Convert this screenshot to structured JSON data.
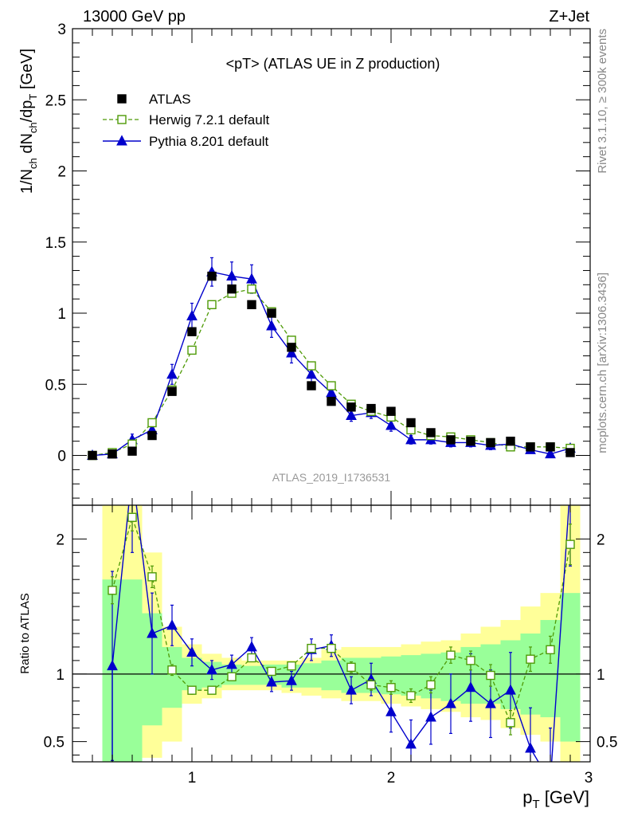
{
  "header": {
    "left": "13000 GeV pp",
    "right": "Z+Jet"
  },
  "side_labels": {
    "rivet": "Rivet 3.1.10, ≥ 300k events",
    "mcplots": "mcplots.cern.ch [arXiv:1306.3436]"
  },
  "colors": {
    "atlas": "#000000",
    "herwig": "#4e9a06",
    "pythia": "#0000cc",
    "band_inner": "#99ff99",
    "band_outer": "#ffff99"
  },
  "chart_data": [
    {
      "type": "line",
      "title": "<pT> (ATLAS UE in Z production)",
      "watermark": "ATLAS_2019_I1736531",
      "ylabel_parts": [
        "1/N",
        "ch",
        " dN",
        "ch",
        "/dp",
        "T",
        " [GeV]"
      ],
      "ylim": [
        -0.35,
        3.0
      ],
      "yticks": [
        0,
        0.5,
        1,
        1.5,
        2,
        2.5,
        3
      ],
      "ytick_labels": [
        "0",
        "0.5",
        "1",
        "1.5",
        "2",
        "2.5",
        "3"
      ],
      "xlim": [
        0.4,
        3.0
      ],
      "x": [
        0.5,
        0.6,
        0.7,
        0.8,
        0.9,
        1.0,
        1.1,
        1.2,
        1.3,
        1.4,
        1.5,
        1.6,
        1.7,
        1.8,
        1.9,
        2.0,
        2.1,
        2.2,
        2.3,
        2.4,
        2.5,
        2.6,
        2.7,
        2.8,
        2.9
      ],
      "legend": {
        "position": "top-left",
        "entries": [
          "ATLAS",
          "Herwig 7.2.1 default",
          "Pythia 8.201 default"
        ]
      },
      "series": [
        {
          "name": "ATLAS",
          "style": "markers-square-filled",
          "values": [
            0.0,
            0.01,
            0.03,
            0.14,
            0.45,
            0.87,
            1.26,
            1.17,
            1.06,
            1.0,
            0.76,
            0.49,
            0.38,
            0.34,
            0.33,
            0.31,
            0.23,
            0.16,
            0.11,
            0.1,
            0.09,
            0.1,
            0.06,
            0.06,
            0.02
          ]
        },
        {
          "name": "Herwig 7.2.1 default",
          "style": "dashed-open-square",
          "values": [
            0.0,
            0.02,
            0.08,
            0.23,
            0.46,
            0.74,
            1.06,
            1.14,
            1.17,
            1.01,
            0.81,
            0.63,
            0.49,
            0.36,
            0.31,
            0.27,
            0.18,
            0.14,
            0.13,
            0.11,
            0.09,
            0.06,
            0.06,
            0.06,
            0.05
          ],
          "errors": [
            0.0,
            0.0,
            0.01,
            0.01,
            0.02,
            0.02,
            0.02,
            0.02,
            0.02,
            0.02,
            0.02,
            0.02,
            0.02,
            0.02,
            0.02,
            0.02,
            0.02,
            0.02,
            0.02,
            0.02,
            0.02,
            0.02,
            0.02,
            0.02,
            0.02
          ]
        },
        {
          "name": "Pythia 8.201 default",
          "style": "solid-filled-triangle",
          "values": [
            0.0,
            0.01,
            0.11,
            0.18,
            0.57,
            0.98,
            1.29,
            1.26,
            1.24,
            0.91,
            0.72,
            0.57,
            0.44,
            0.28,
            0.3,
            0.21,
            0.11,
            0.11,
            0.09,
            0.09,
            0.07,
            0.08,
            0.04,
            0.01,
            0.05
          ],
          "errors": [
            0.0,
            0.01,
            0.04,
            0.05,
            0.07,
            0.09,
            0.1,
            0.1,
            0.1,
            0.08,
            0.07,
            0.06,
            0.05,
            0.04,
            0.04,
            0.04,
            0.03,
            0.03,
            0.03,
            0.03,
            0.03,
            0.03,
            0.02,
            0.02,
            0.02
          ]
        }
      ]
    },
    {
      "type": "line",
      "ylabel": "Ratio to ATLAS",
      "xlabel_parts": [
        "p",
        "T",
        " [GeV]"
      ],
      "xlim": [
        0.4,
        3.0
      ],
      "ylim": [
        0.35,
        2.25
      ],
      "xticks": [
        1,
        2,
        3
      ],
      "xtick_labels": [
        "1",
        "2",
        "3"
      ],
      "yticks": [
        0.5,
        1,
        2
      ],
      "ytick_labels": [
        "0.5",
        "1",
        "2"
      ],
      "reference_line": 1.0,
      "x": [
        0.5,
        0.6,
        0.7,
        0.8,
        0.9,
        1.0,
        1.1,
        1.2,
        1.3,
        1.4,
        1.5,
        1.6,
        1.7,
        1.8,
        1.9,
        2.0,
        2.1,
        2.2,
        2.3,
        2.4,
        2.5,
        2.6,
        2.7,
        2.8,
        2.9
      ],
      "bands": {
        "edges": [
          0.55,
          0.65,
          0.75,
          0.85,
          0.95,
          1.05,
          1.15,
          1.25,
          1.35,
          1.45,
          1.55,
          1.65,
          1.75,
          1.85,
          1.95,
          2.05,
          2.15,
          2.25,
          2.35,
          2.45,
          2.55,
          2.65,
          2.75,
          2.85,
          2.95
        ],
        "outer_low": [
          0.0,
          0.0,
          0.38,
          0.5,
          0.78,
          0.82,
          0.88,
          0.88,
          0.88,
          0.86,
          0.84,
          0.82,
          0.8,
          0.8,
          0.78,
          0.76,
          0.74,
          0.72,
          0.68,
          0.66,
          0.6,
          0.55,
          0.5,
          0.3
        ],
        "outer_high": [
          2.3,
          2.3,
          1.9,
          1.35,
          1.22,
          1.15,
          1.12,
          1.1,
          1.1,
          1.1,
          1.12,
          1.18,
          1.2,
          1.2,
          1.2,
          1.22,
          1.24,
          1.25,
          1.3,
          1.35,
          1.4,
          1.5,
          1.6,
          2.3
        ],
        "inner_low": [
          0.35,
          0.35,
          0.62,
          0.75,
          0.88,
          0.9,
          0.92,
          0.92,
          0.92,
          0.9,
          0.9,
          0.88,
          0.86,
          0.86,
          0.85,
          0.84,
          0.82,
          0.8,
          0.78,
          0.78,
          0.74,
          0.7,
          0.68,
          0.5
        ],
        "inner_high": [
          1.7,
          1.7,
          1.45,
          1.2,
          1.12,
          1.09,
          1.07,
          1.06,
          1.07,
          1.07,
          1.08,
          1.1,
          1.12,
          1.12,
          1.13,
          1.14,
          1.15,
          1.16,
          1.2,
          1.22,
          1.25,
          1.3,
          1.4,
          1.6
        ]
      },
      "series": [
        {
          "name": "Herwig 7.2.1 default",
          "style": "dashed-open-square",
          "values": [
            null,
            1.62,
            2.16,
            1.72,
            1.03,
            0.88,
            0.88,
            0.98,
            1.12,
            1.02,
            1.06,
            1.19,
            1.19,
            1.05,
            0.92,
            0.9,
            0.84,
            0.92,
            1.14,
            1.1,
            0.99,
            0.64,
            1.11,
            1.18,
            1.96
          ],
          "errors": [
            null,
            0.1,
            0.1,
            0.08,
            0.04,
            0.03,
            0.02,
            0.02,
            0.02,
            0.02,
            0.02,
            0.03,
            0.03,
            0.04,
            0.04,
            0.05,
            0.05,
            0.06,
            0.06,
            0.07,
            0.08,
            0.09,
            0.09,
            0.1,
            0.15
          ]
        },
        {
          "name": "Pythia 8.201 default",
          "style": "solid-filled-triangle",
          "values": [
            null,
            1.06,
            2.5,
            1.3,
            1.36,
            1.16,
            1.03,
            1.07,
            1.2,
            0.94,
            0.95,
            1.18,
            1.21,
            0.88,
            0.96,
            0.72,
            0.48,
            0.68,
            0.78,
            0.9,
            0.78,
            0.88,
            0.45,
            0.2,
            2.4
          ],
          "errors": [
            null,
            0.7,
            0.6,
            0.3,
            0.15,
            0.1,
            0.07,
            0.07,
            0.07,
            0.07,
            0.07,
            0.08,
            0.08,
            0.1,
            0.12,
            0.15,
            0.18,
            0.2,
            0.22,
            0.25,
            0.25,
            0.28,
            0.3,
            0.4,
            0.6
          ]
        }
      ]
    }
  ]
}
